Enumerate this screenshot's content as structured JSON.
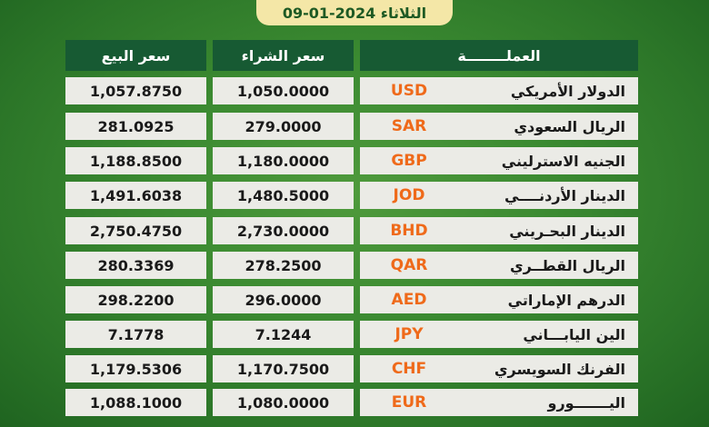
{
  "date_label": "الثلاثاء 2024-01-09",
  "headers": {
    "currency": "العملــــــــة",
    "buy": "سعر الشراء",
    "sell": "سعر البيع"
  },
  "rows": [
    {
      "name": "الدولار الأمريكي",
      "code": "USD",
      "buy": "1,050.0000",
      "sell": "1,057.8750"
    },
    {
      "name": "الريال السعودي",
      "code": "SAR",
      "buy": "279.0000",
      "sell": "281.0925"
    },
    {
      "name": "الجنيه الاسترليني",
      "code": "GBP",
      "buy": "1,180.0000",
      "sell": "1,188.8500"
    },
    {
      "name": "الدينار الأردنــــي",
      "code": "JOD",
      "buy": "1,480.5000",
      "sell": "1,491.6038"
    },
    {
      "name": "الدينار البحـريني",
      "code": "BHD",
      "buy": "2,730.0000",
      "sell": "2,750.4750"
    },
    {
      "name": "الريال القطــري",
      "code": "QAR",
      "buy": "278.2500",
      "sell": "280.3369"
    },
    {
      "name": "الدرهم الإماراتي",
      "code": "AED",
      "buy": "296.0000",
      "sell": "298.2200"
    },
    {
      "name": "الين اليابـــاني",
      "code": "JPY",
      "buy": "7.1244",
      "sell": "7.1778"
    },
    {
      "name": "الفرنك السويسري",
      "code": "CHF",
      "buy": "1,170.7500",
      "sell": "1,179.5306"
    },
    {
      "name": "اليـــــــورو",
      "code": "EUR",
      "buy": "1,080.0000",
      "sell": "1,088.1000"
    }
  ]
}
